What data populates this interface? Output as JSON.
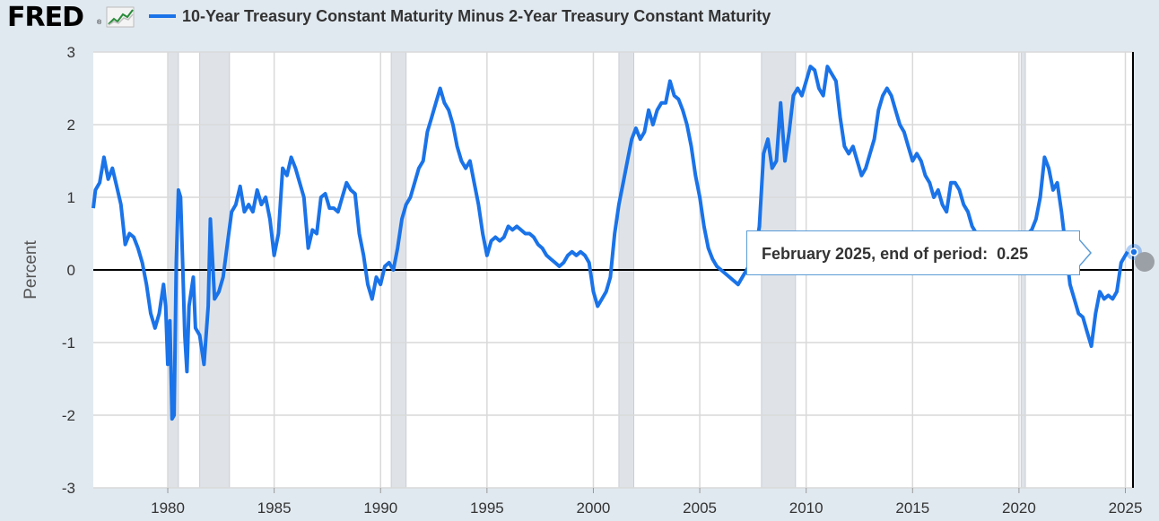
{
  "header": {
    "logo_text": "FRED",
    "logo_mark": "®",
    "logo_icon": "line-graph-icon",
    "legend_title": "10-Year Treasury Constant Maturity Minus 2-Year Treasury Constant Maturity"
  },
  "tooltip": {
    "label": "February 2025, end of period:",
    "value": "0.25"
  },
  "colors": {
    "series": "#1a73e8",
    "recession": "#dfe3e8",
    "background": "#e1e9f0",
    "plot": "#ffffff"
  },
  "chart_data": {
    "type": "line",
    "title": "",
    "xlabel": "",
    "ylabel": "Percent",
    "xlim": [
      1976.5,
      2025.4
    ],
    "ylim": [
      -3,
      3
    ],
    "yticks": [
      "3",
      "2",
      "1",
      "0",
      "-1",
      "-2",
      "-3"
    ],
    "xticks": [
      "1980",
      "1985",
      "1990",
      "1995",
      "2000",
      "2005",
      "2010",
      "2015",
      "2020",
      "2025"
    ],
    "grid": true,
    "legend": "top-left",
    "recessions": [
      [
        1980.0,
        1980.5
      ],
      [
        1981.5,
        1982.9
      ],
      [
        1990.5,
        1991.2
      ],
      [
        2001.2,
        2001.9
      ],
      [
        2007.9,
        2009.5
      ],
      [
        2020.1,
        2020.3
      ]
    ],
    "series": [
      {
        "name": "10-Year Treasury Constant Maturity Minus 2-Year Treasury Constant Maturity",
        "points": [
          [
            1976.5,
            0.85
          ],
          [
            1976.6,
            1.1
          ],
          [
            1976.8,
            1.2
          ],
          [
            1977.0,
            1.55
          ],
          [
            1977.2,
            1.25
          ],
          [
            1977.4,
            1.4
          ],
          [
            1977.6,
            1.15
          ],
          [
            1977.8,
            0.9
          ],
          [
            1978.0,
            0.35
          ],
          [
            1978.2,
            0.5
          ],
          [
            1978.4,
            0.45
          ],
          [
            1978.6,
            0.3
          ],
          [
            1978.8,
            0.1
          ],
          [
            1979.0,
            -0.2
          ],
          [
            1979.2,
            -0.6
          ],
          [
            1979.4,
            -0.8
          ],
          [
            1979.6,
            -0.6
          ],
          [
            1979.8,
            -0.2
          ],
          [
            1979.9,
            -0.5
          ],
          [
            1980.0,
            -1.3
          ],
          [
            1980.1,
            -0.7
          ],
          [
            1980.2,
            -2.05
          ],
          [
            1980.3,
            -2.0
          ],
          [
            1980.4,
            0.1
          ],
          [
            1980.5,
            1.1
          ],
          [
            1980.6,
            1.0
          ],
          [
            1980.7,
            0.1
          ],
          [
            1980.8,
            -0.9
          ],
          [
            1980.9,
            -1.4
          ],
          [
            1981.0,
            -0.5
          ],
          [
            1981.2,
            -0.1
          ],
          [
            1981.3,
            -0.8
          ],
          [
            1981.5,
            -0.9
          ],
          [
            1981.7,
            -1.3
          ],
          [
            1981.9,
            -0.5
          ],
          [
            1982.0,
            0.7
          ],
          [
            1982.2,
            -0.4
          ],
          [
            1982.4,
            -0.3
          ],
          [
            1982.6,
            -0.1
          ],
          [
            1982.8,
            0.35
          ],
          [
            1983.0,
            0.8
          ],
          [
            1983.2,
            0.9
          ],
          [
            1983.4,
            1.15
          ],
          [
            1983.6,
            0.8
          ],
          [
            1983.8,
            0.9
          ],
          [
            1984.0,
            0.8
          ],
          [
            1984.2,
            1.1
          ],
          [
            1984.4,
            0.9
          ],
          [
            1984.6,
            1.0
          ],
          [
            1984.8,
            0.7
          ],
          [
            1985.0,
            0.2
          ],
          [
            1985.2,
            0.5
          ],
          [
            1985.4,
            1.4
          ],
          [
            1985.6,
            1.3
          ],
          [
            1985.8,
            1.55
          ],
          [
            1986.0,
            1.4
          ],
          [
            1986.2,
            1.2
          ],
          [
            1986.4,
            1.0
          ],
          [
            1986.6,
            0.3
          ],
          [
            1986.8,
            0.55
          ],
          [
            1987.0,
            0.5
          ],
          [
            1987.2,
            1.0
          ],
          [
            1987.4,
            1.05
          ],
          [
            1987.6,
            0.85
          ],
          [
            1987.8,
            0.85
          ],
          [
            1988.0,
            0.8
          ],
          [
            1988.2,
            1.0
          ],
          [
            1988.4,
            1.2
          ],
          [
            1988.6,
            1.1
          ],
          [
            1988.8,
            1.05
          ],
          [
            1989.0,
            0.5
          ],
          [
            1989.2,
            0.2
          ],
          [
            1989.4,
            -0.2
          ],
          [
            1989.6,
            -0.4
          ],
          [
            1989.8,
            -0.1
          ],
          [
            1990.0,
            -0.2
          ],
          [
            1990.2,
            0.05
          ],
          [
            1990.4,
            0.1
          ],
          [
            1990.6,
            0.0
          ],
          [
            1990.8,
            0.3
          ],
          [
            1991.0,
            0.7
          ],
          [
            1991.2,
            0.9
          ],
          [
            1991.4,
            1.0
          ],
          [
            1991.6,
            1.2
          ],
          [
            1991.8,
            1.4
          ],
          [
            1992.0,
            1.5
          ],
          [
            1992.2,
            1.9
          ],
          [
            1992.4,
            2.1
          ],
          [
            1992.6,
            2.3
          ],
          [
            1992.8,
            2.5
          ],
          [
            1993.0,
            2.3
          ],
          [
            1993.2,
            2.2
          ],
          [
            1993.4,
            2.0
          ],
          [
            1993.6,
            1.7
          ],
          [
            1993.8,
            1.5
          ],
          [
            1994.0,
            1.4
          ],
          [
            1994.2,
            1.5
          ],
          [
            1994.4,
            1.2
          ],
          [
            1994.6,
            0.9
          ],
          [
            1994.8,
            0.5
          ],
          [
            1995.0,
            0.2
          ],
          [
            1995.2,
            0.4
          ],
          [
            1995.4,
            0.45
          ],
          [
            1995.6,
            0.4
          ],
          [
            1995.8,
            0.45
          ],
          [
            1996.0,
            0.6
          ],
          [
            1996.2,
            0.55
          ],
          [
            1996.4,
            0.6
          ],
          [
            1996.6,
            0.55
          ],
          [
            1996.8,
            0.5
          ],
          [
            1997.0,
            0.5
          ],
          [
            1997.2,
            0.45
          ],
          [
            1997.4,
            0.35
          ],
          [
            1997.6,
            0.3
          ],
          [
            1997.8,
            0.2
          ],
          [
            1998.0,
            0.15
          ],
          [
            1998.2,
            0.1
          ],
          [
            1998.4,
            0.05
          ],
          [
            1998.6,
            0.1
          ],
          [
            1998.8,
            0.2
          ],
          [
            1999.0,
            0.25
          ],
          [
            1999.2,
            0.2
          ],
          [
            1999.4,
            0.25
          ],
          [
            1999.6,
            0.2
          ],
          [
            1999.8,
            0.1
          ],
          [
            2000.0,
            -0.3
          ],
          [
            2000.2,
            -0.5
          ],
          [
            2000.4,
            -0.4
          ],
          [
            2000.6,
            -0.3
          ],
          [
            2000.8,
            -0.1
          ],
          [
            2001.0,
            0.5
          ],
          [
            2001.2,
            0.9
          ],
          [
            2001.4,
            1.2
          ],
          [
            2001.6,
            1.5
          ],
          [
            2001.8,
            1.8
          ],
          [
            2002.0,
            1.95
          ],
          [
            2002.2,
            1.8
          ],
          [
            2002.4,
            1.9
          ],
          [
            2002.6,
            2.2
          ],
          [
            2002.8,
            2.0
          ],
          [
            2003.0,
            2.2
          ],
          [
            2003.2,
            2.3
          ],
          [
            2003.4,
            2.3
          ],
          [
            2003.6,
            2.6
          ],
          [
            2003.8,
            2.4
          ],
          [
            2004.0,
            2.35
          ],
          [
            2004.2,
            2.2
          ],
          [
            2004.4,
            2.0
          ],
          [
            2004.6,
            1.7
          ],
          [
            2004.8,
            1.3
          ],
          [
            2005.0,
            1.0
          ],
          [
            2005.2,
            0.6
          ],
          [
            2005.4,
            0.3
          ],
          [
            2005.6,
            0.15
          ],
          [
            2005.8,
            0.05
          ],
          [
            2006.0,
            0.0
          ],
          [
            2006.2,
            -0.05
          ],
          [
            2006.4,
            -0.1
          ],
          [
            2006.6,
            -0.15
          ],
          [
            2006.8,
            -0.2
          ],
          [
            2007.0,
            -0.1
          ],
          [
            2007.2,
            0.0
          ],
          [
            2007.4,
            0.1
          ],
          [
            2007.6,
            0.2
          ],
          [
            2007.8,
            0.6
          ],
          [
            2008.0,
            1.6
          ],
          [
            2008.2,
            1.8
          ],
          [
            2008.4,
            1.4
          ],
          [
            2008.6,
            1.5
          ],
          [
            2008.8,
            2.3
          ],
          [
            2009.0,
            1.5
          ],
          [
            2009.2,
            1.9
          ],
          [
            2009.4,
            2.4
          ],
          [
            2009.6,
            2.5
          ],
          [
            2009.8,
            2.4
          ],
          [
            2010.0,
            2.6
          ],
          [
            2010.2,
            2.8
          ],
          [
            2010.4,
            2.75
          ],
          [
            2010.6,
            2.5
          ],
          [
            2010.8,
            2.4
          ],
          [
            2011.0,
            2.8
          ],
          [
            2011.2,
            2.7
          ],
          [
            2011.4,
            2.6
          ],
          [
            2011.6,
            2.1
          ],
          [
            2011.8,
            1.7
          ],
          [
            2012.0,
            1.6
          ],
          [
            2012.2,
            1.7
          ],
          [
            2012.4,
            1.5
          ],
          [
            2012.6,
            1.3
          ],
          [
            2012.8,
            1.4
          ],
          [
            2013.0,
            1.6
          ],
          [
            2013.2,
            1.8
          ],
          [
            2013.4,
            2.2
          ],
          [
            2013.6,
            2.4
          ],
          [
            2013.8,
            2.5
          ],
          [
            2014.0,
            2.4
          ],
          [
            2014.2,
            2.2
          ],
          [
            2014.4,
            2.0
          ],
          [
            2014.6,
            1.9
          ],
          [
            2014.8,
            1.7
          ],
          [
            2015.0,
            1.5
          ],
          [
            2015.2,
            1.6
          ],
          [
            2015.4,
            1.5
          ],
          [
            2015.6,
            1.3
          ],
          [
            2015.8,
            1.2
          ],
          [
            2016.0,
            1.0
          ],
          [
            2016.2,
            1.1
          ],
          [
            2016.4,
            0.9
          ],
          [
            2016.6,
            0.8
          ],
          [
            2016.8,
            1.2
          ],
          [
            2017.0,
            1.2
          ],
          [
            2017.2,
            1.1
          ],
          [
            2017.4,
            0.9
          ],
          [
            2017.6,
            0.8
          ],
          [
            2017.8,
            0.6
          ],
          [
            2018.0,
            0.5
          ],
          [
            2018.2,
            0.4
          ],
          [
            2018.4,
            0.3
          ],
          [
            2018.6,
            0.25
          ],
          [
            2018.8,
            0.2
          ],
          [
            2019.0,
            0.15
          ],
          [
            2019.2,
            0.1
          ],
          [
            2019.4,
            0.05
          ],
          [
            2019.6,
            0.0
          ],
          [
            2019.8,
            0.15
          ],
          [
            2020.0,
            0.2
          ],
          [
            2020.2,
            0.25
          ],
          [
            2020.4,
            0.5
          ],
          [
            2020.6,
            0.55
          ],
          [
            2020.8,
            0.7
          ],
          [
            2021.0,
            1.0
          ],
          [
            2021.2,
            1.55
          ],
          [
            2021.4,
            1.4
          ],
          [
            2021.6,
            1.1
          ],
          [
            2021.8,
            1.2
          ],
          [
            2022.0,
            0.8
          ],
          [
            2022.2,
            0.3
          ],
          [
            2022.4,
            -0.2
          ],
          [
            2022.6,
            -0.4
          ],
          [
            2022.8,
            -0.6
          ],
          [
            2023.0,
            -0.65
          ],
          [
            2023.2,
            -0.85
          ],
          [
            2023.4,
            -1.05
          ],
          [
            2023.6,
            -0.6
          ],
          [
            2023.8,
            -0.3
          ],
          [
            2024.0,
            -0.4
          ],
          [
            2024.2,
            -0.35
          ],
          [
            2024.4,
            -0.4
          ],
          [
            2024.6,
            -0.3
          ],
          [
            2024.8,
            0.1
          ],
          [
            2025.0,
            0.2
          ],
          [
            2025.1,
            0.25
          ]
        ]
      }
    ]
  }
}
